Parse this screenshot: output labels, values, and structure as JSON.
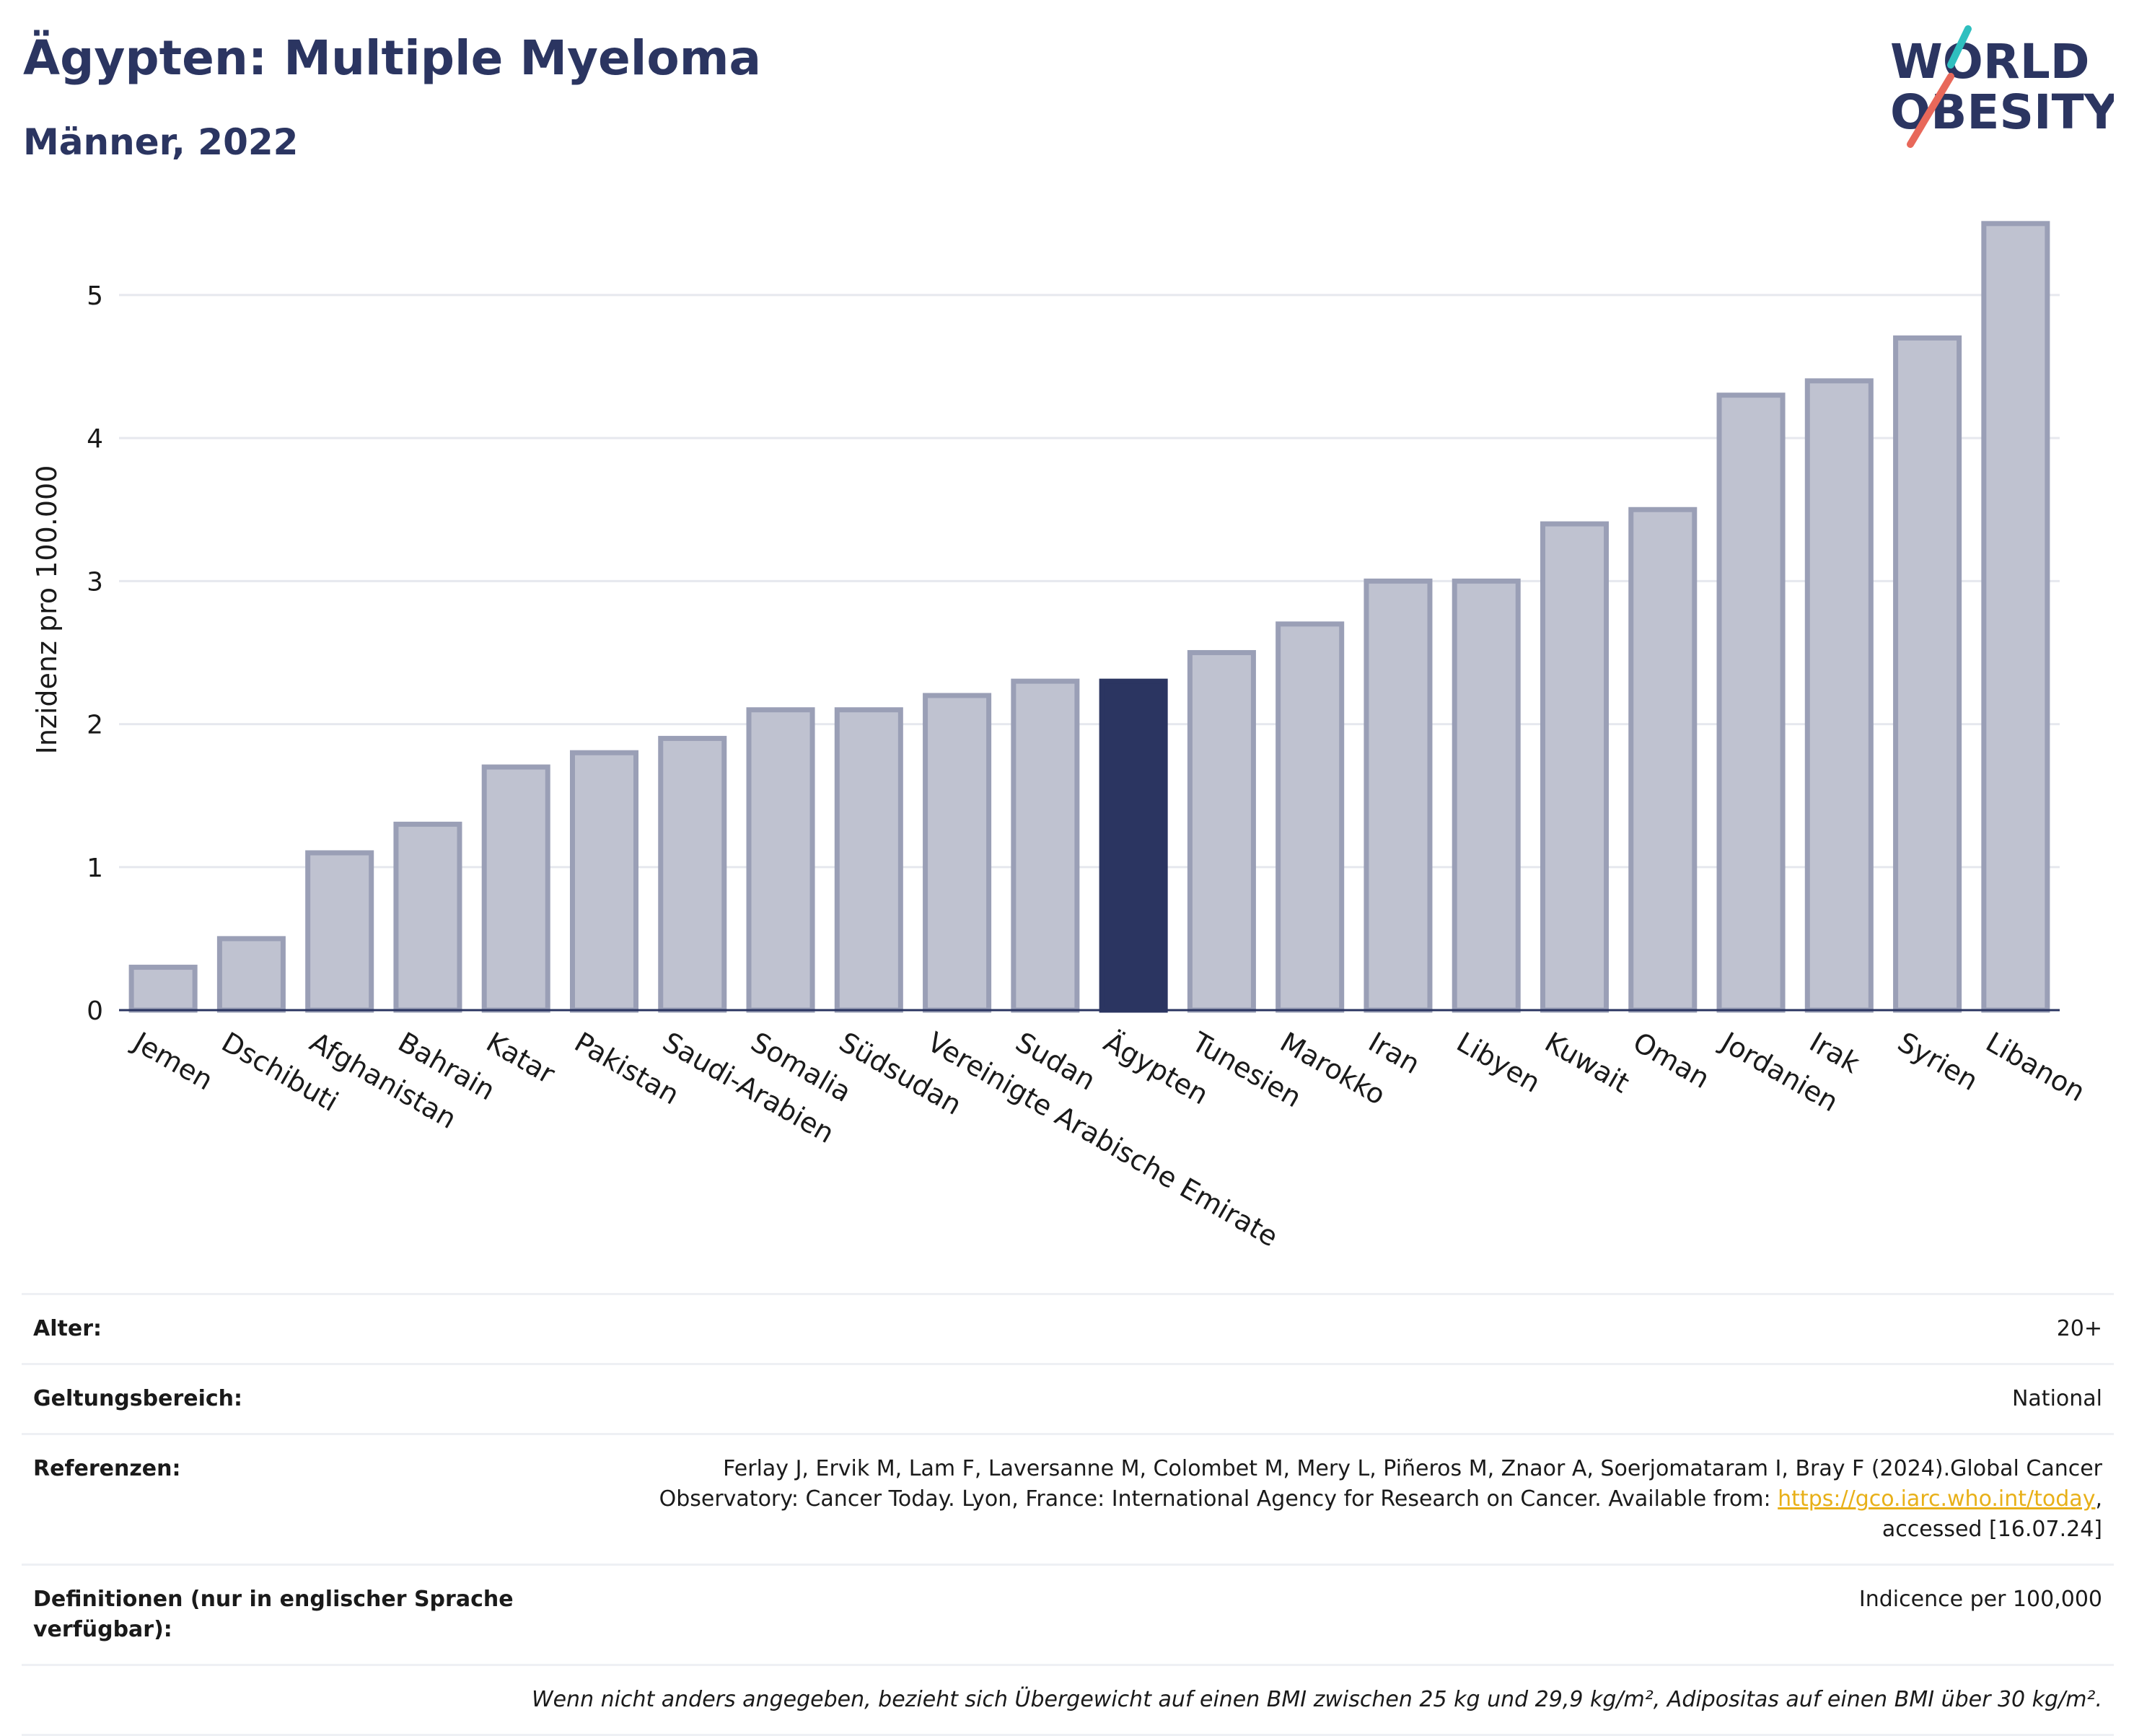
{
  "header": {
    "title": "Ägypten: Multiple Myeloma",
    "subtitle": "Männer, 2022"
  },
  "logo": {
    "line1": "WORLD",
    "line2": "OBESITY"
  },
  "colors": {
    "bar": "#bfc2d0",
    "bar_border": "#9a9fb6",
    "highlight": "#2b3561",
    "accent_teal": "#2fbfbf",
    "accent_red": "#e8685a"
  },
  "chart_data": {
    "type": "bar",
    "ylabel": "Inzidenz pro 100.000",
    "xlabel": "",
    "ylim": [
      0,
      5.6
    ],
    "yticks": [
      0,
      1,
      2,
      3,
      4,
      5
    ],
    "grid": true,
    "highlight": "Ägypten",
    "categories": [
      "Jemen",
      "Dschibuti",
      "Afghanistan",
      "Bahrain",
      "Katar",
      "Pakistan",
      "Saudi-Arabien",
      "Somalia",
      "Südsudan",
      "Vereinigte Arabische Emirate",
      "Sudan",
      "Ägypten",
      "Tunesien",
      "Marokko",
      "Iran",
      "Libyen",
      "Kuwait",
      "Oman",
      "Jordanien",
      "Irak",
      "Syrien",
      "Libanon"
    ],
    "values": [
      0.3,
      0.5,
      1.1,
      1.3,
      1.7,
      1.8,
      1.9,
      2.1,
      2.1,
      2.2,
      2.3,
      2.3,
      2.5,
      2.7,
      3.0,
      3.0,
      3.4,
      3.5,
      4.3,
      4.4,
      4.7,
      5.5
    ]
  },
  "info": {
    "age_label": "Alter:",
    "age_value": "20+",
    "scope_label": "Geltungsbereich:",
    "scope_value": "National",
    "ref_label": "Referenzen:",
    "ref_line1": "Ferlay J, Ervik M, Lam F, Laversanne M, Colombet M, Mery L, Piñeros M, Znaor A, Soerjomataram I, Bray F (2024).Global Cancer",
    "ref_line2": "Observatory: Cancer Today. Lyon, France: International Agency for Research on Cancer. Available from: ",
    "ref_link": "https://gco.iarc.who.int/today",
    "ref_line2_end": ",",
    "ref_line3": "accessed [16.07.24]",
    "def_label": "Definitionen (nur in englischer Sprache verfügbar):",
    "def_value": "Indicence per 100,000",
    "note": "Wenn nicht anders angegeben, bezieht sich Übergewicht auf einen BMI zwischen 25 kg und 29,9 kg/m², Adipositas auf einen BMI über 30 kg/m²."
  }
}
